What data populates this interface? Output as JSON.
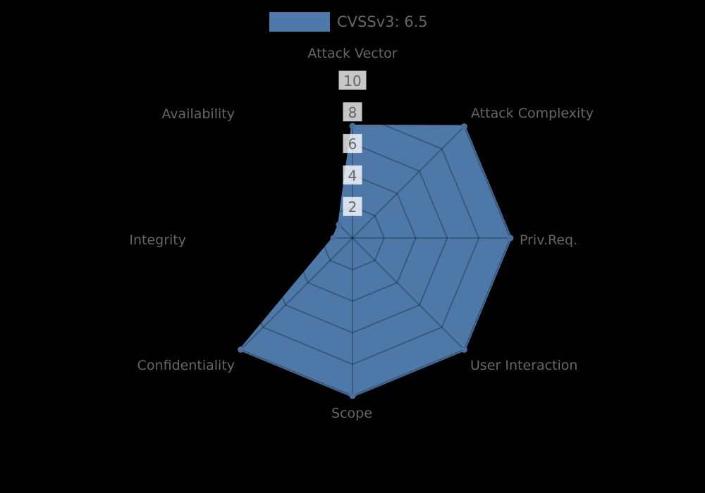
{
  "background": "#000000",
  "legend": {
    "label": "CVSSv3: 6.5",
    "swatch_color": "#4d78a7"
  },
  "chart_data": {
    "type": "radar",
    "title": "CVSSv3: 6.5",
    "categories": [
      "Attack Vector",
      "Attack Complexity",
      "Priv.Req.",
      "User Interaction",
      "Scope",
      "Confidentiality",
      "Integrity",
      "Availability"
    ],
    "series": [
      {
        "name": "CVSSv3: 6.5",
        "values": [
          7.1,
          10,
          10,
          10,
          10,
          10,
          1.2,
          1.2
        ]
      }
    ],
    "axis_range": [
      0,
      10
    ],
    "ticks": [
      2,
      4,
      6,
      8,
      10
    ],
    "grid": "on",
    "legend_position": "top",
    "colors": {
      "fill": "#4d78a7",
      "stroke": "#4d78a7",
      "point": "#48709d",
      "grid_line": "rgba(0,0,0,0.25)",
      "label_text": "#666666",
      "tick_text": "#666666",
      "tick_backdrop": "rgba(255,255,255,0.78)"
    }
  }
}
